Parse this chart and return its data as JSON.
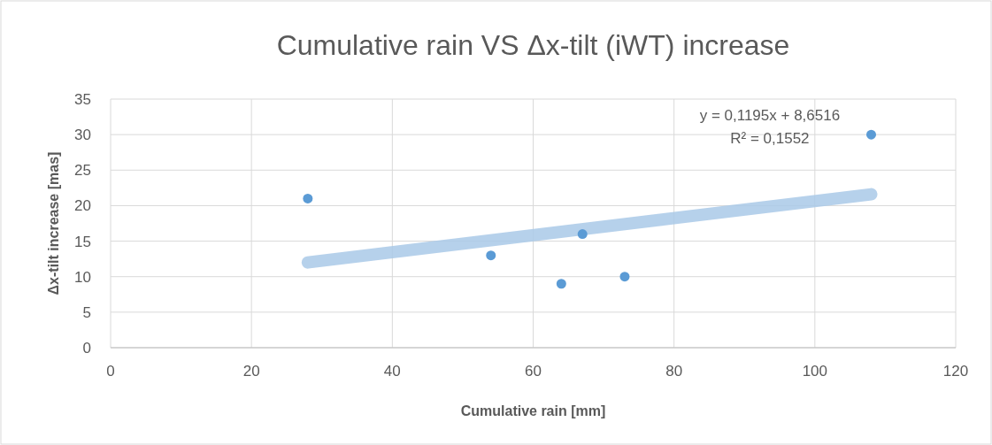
{
  "chart_data": {
    "type": "scatter",
    "title": "Cumulative rain VS Δx-tilt (iWT) increase",
    "xlabel": "Cumulative rain [mm]",
    "ylabel": "Δx-tilt increase [mas]",
    "x": [
      28,
      54,
      64,
      67,
      73,
      108
    ],
    "series": [
      {
        "color": "#5b9bd5",
        "values": [
          21,
          13,
          9,
          16,
          10,
          30
        ]
      },
      {
        "type": "line",
        "marker": "none",
        "color": "#a9c9e8",
        "x": [
          28,
          108
        ],
        "values": [
          12.0,
          21.6
        ]
      }
    ],
    "xlim": [
      0,
      120
    ],
    "xticks": [
      0,
      20,
      40,
      60,
      80,
      100,
      120
    ],
    "ylim": [
      0,
      35
    ],
    "yticks": [
      0,
      5,
      10,
      15,
      20,
      25,
      30,
      35
    ],
    "grid": true,
    "marker": "circle",
    "line_style": "solid",
    "annotations": [
      "y = 0,1195x + 8,6516",
      "R² = 0,1552"
    ]
  }
}
